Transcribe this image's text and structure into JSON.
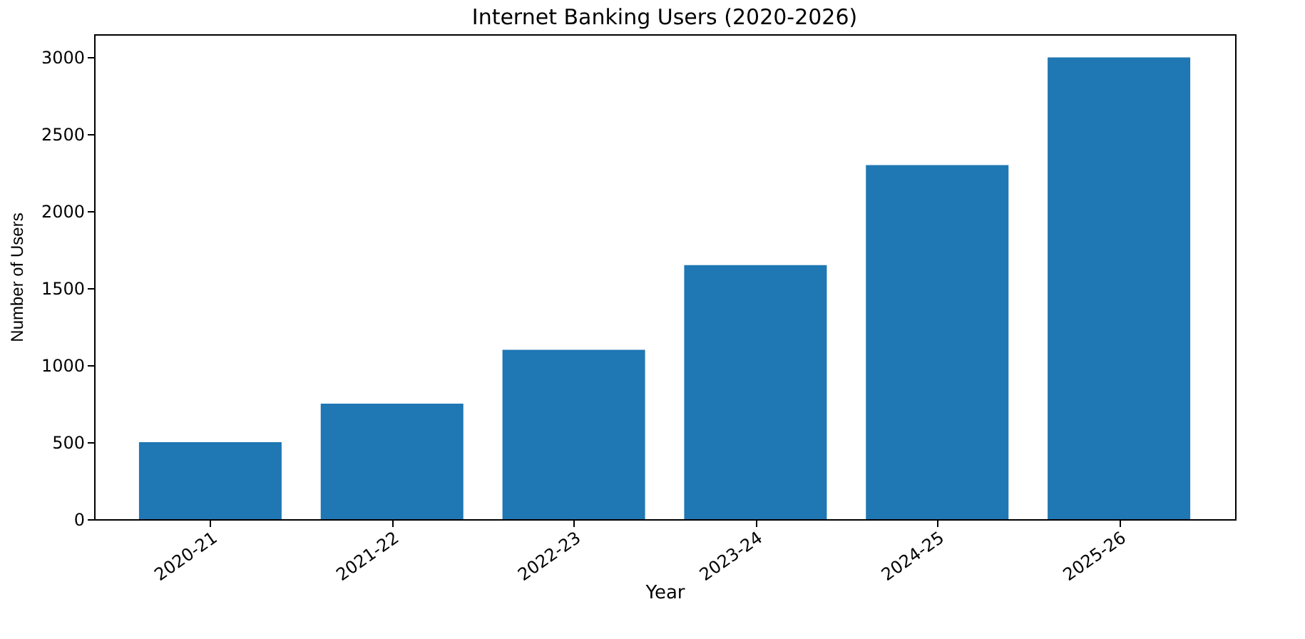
{
  "chart_data": {
    "type": "bar",
    "title": "Internet Banking Users (2020-2026)",
    "xlabel": "Year",
    "ylabel": "Number of Users",
    "categories": [
      "2020-21",
      "2021-22",
      "2022-23",
      "2023-24",
      "2024-25",
      "2025-26"
    ],
    "values": [
      500,
      750,
      1100,
      1650,
      2300,
      3000
    ],
    "color": "#1f77b4",
    "ylim": [
      0,
      3150
    ],
    "yticks": [
      0,
      500,
      1000,
      1500,
      2000,
      2500,
      3000
    ],
    "grid": false
  }
}
